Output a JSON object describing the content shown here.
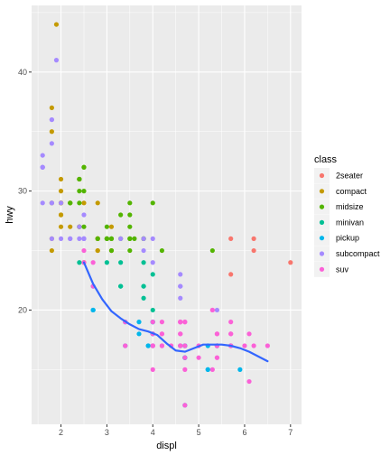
{
  "chart_data": {
    "type": "scatter",
    "xlabel": "displ",
    "ylabel": "hwy",
    "xlim": [
      1.36,
      7.24
    ],
    "ylim": [
      10.4,
      45.6
    ],
    "x_ticks": [
      2,
      3,
      4,
      5,
      6,
      7
    ],
    "y_ticks": [
      20,
      30,
      40
    ],
    "x_tick_labels": [
      "2",
      "3",
      "4",
      "5",
      "6",
      "7"
    ],
    "y_tick_labels": [
      "20",
      "30",
      "40"
    ],
    "grid": true,
    "legend": {
      "title": "class",
      "placement": "right",
      "entries": [
        {
          "label": "2seater",
          "color": "#F8766D"
        },
        {
          "label": "compact",
          "color": "#C49A00"
        },
        {
          "label": "midsize",
          "color": "#53B400"
        },
        {
          "label": "minivan",
          "color": "#00C094"
        },
        {
          "label": "pickup",
          "color": "#00B6EB"
        },
        {
          "label": "subcompact",
          "color": "#A58AFF"
        },
        {
          "label": "suv",
          "color": "#FB61D7"
        }
      ]
    },
    "series": [
      {
        "name": "2seater",
        "color": "#F8766D",
        "points": [
          [
            5.7,
            26
          ],
          [
            5.7,
            23
          ],
          [
            6.2,
            26
          ],
          [
            6.2,
            25
          ],
          [
            7.0,
            24
          ]
        ]
      },
      {
        "name": "compact",
        "color": "#C49A00",
        "points": [
          [
            1.8,
            29
          ],
          [
            1.8,
            29
          ],
          [
            2.0,
            31
          ],
          [
            2.0,
            30
          ],
          [
            2.8,
            26
          ],
          [
            2.8,
            26
          ],
          [
            3.1,
            27
          ],
          [
            1.8,
            26
          ],
          [
            1.8,
            25
          ],
          [
            2.0,
            28
          ],
          [
            2.0,
            27
          ],
          [
            2.8,
            25
          ],
          [
            2.8,
            25
          ],
          [
            3.1,
            25
          ],
          [
            3.1,
            25
          ],
          [
            2.2,
            27
          ],
          [
            2.2,
            29
          ],
          [
            2.4,
            31
          ],
          [
            2.4,
            31
          ],
          [
            3.0,
            26
          ],
          [
            2.0,
            29
          ],
          [
            2.0,
            29
          ],
          [
            2.0,
            28
          ],
          [
            2.0,
            29
          ],
          [
            2.8,
            29
          ],
          [
            1.9,
            44
          ],
          [
            2.0,
            29
          ],
          [
            2.5,
            29
          ],
          [
            2.5,
            24
          ],
          [
            2.8,
            26
          ],
          [
            2.8,
            26
          ],
          [
            1.8,
            37
          ],
          [
            1.8,
            35
          ],
          [
            2.0,
            29
          ],
          [
            2.4,
            27
          ],
          [
            2.4,
            27
          ]
        ]
      },
      {
        "name": "midsize",
        "color": "#53B400",
        "points": [
          [
            2.8,
            26
          ],
          [
            3.1,
            26
          ],
          [
            4.2,
            25
          ],
          [
            2.4,
            27
          ],
          [
            2.4,
            30
          ],
          [
            3.3,
            26
          ],
          [
            3.5,
            29
          ],
          [
            3.8,
            26
          ],
          [
            3.0,
            26
          ],
          [
            3.5,
            26
          ],
          [
            2.5,
            32
          ],
          [
            2.5,
            32
          ],
          [
            2.5,
            30
          ],
          [
            3.5,
            25
          ],
          [
            3.5,
            26
          ],
          [
            2.4,
            31
          ],
          [
            2.4,
            31
          ],
          [
            3.1,
            26
          ],
          [
            3.5,
            28
          ],
          [
            3.6,
            26
          ],
          [
            5.3,
            25
          ],
          [
            2.4,
            29
          ],
          [
            2.5,
            27
          ],
          [
            3.0,
            26
          ],
          [
            3.3,
            28
          ],
          [
            2.2,
            29
          ],
          [
            2.2,
            29
          ],
          [
            3.0,
            27
          ],
          [
            3.0,
            26
          ],
          [
            3.5,
            27
          ],
          [
            3.1,
            25
          ],
          [
            3.8,
            26
          ],
          [
            3.8,
            26
          ],
          [
            4.0,
            29
          ]
        ]
      },
      {
        "name": "minivan",
        "color": "#00C094",
        "points": [
          [
            2.4,
            24
          ],
          [
            3.0,
            24
          ],
          [
            3.3,
            22
          ],
          [
            3.3,
            22
          ],
          [
            3.3,
            24
          ],
          [
            3.8,
            22
          ],
          [
            3.8,
            24
          ],
          [
            3.8,
            21
          ],
          [
            4.0,
            23
          ],
          [
            3.8,
            22
          ],
          [
            4.0,
            20
          ]
        ]
      },
      {
        "name": "pickup",
        "color": "#00B6EB",
        "points": [
          [
            3.7,
            19
          ],
          [
            3.7,
            18
          ],
          [
            3.9,
            17
          ],
          [
            3.9,
            17
          ],
          [
            4.7,
            17
          ],
          [
            4.7,
            16
          ],
          [
            4.7,
            16
          ],
          [
            5.2,
            17
          ],
          [
            5.2,
            15
          ],
          [
            5.7,
            17
          ],
          [
            5.9,
            15
          ],
          [
            4.7,
            17
          ],
          [
            4.7,
            17
          ],
          [
            4.7,
            16
          ],
          [
            4.7,
            16
          ],
          [
            5.2,
            15
          ],
          [
            2.7,
            20
          ],
          [
            2.7,
            20
          ],
          [
            3.4,
            17
          ],
          [
            3.4,
            19
          ],
          [
            4.0,
            18
          ],
          [
            4.0,
            17
          ],
          [
            4.7,
            12
          ],
          [
            5.4,
            17
          ],
          [
            5.4,
            17
          ],
          [
            4.0,
            18
          ],
          [
            4.0,
            19
          ],
          [
            4.6,
            17
          ],
          [
            5.4,
            17
          ],
          [
            2.7,
            22
          ],
          [
            2.7,
            20
          ],
          [
            4.0,
            19
          ]
        ]
      },
      {
        "name": "subcompact",
        "color": "#A58AFF",
        "points": [
          [
            3.8,
            26
          ],
          [
            3.8,
            25
          ],
          [
            4.0,
            26
          ],
          [
            4.0,
            24
          ],
          [
            4.6,
            21
          ],
          [
            4.6,
            22
          ],
          [
            4.6,
            23
          ],
          [
            4.6,
            22
          ],
          [
            5.4,
            20
          ],
          [
            1.6,
            33
          ],
          [
            1.6,
            32
          ],
          [
            1.6,
            32
          ],
          [
            1.6,
            29
          ],
          [
            1.6,
            32
          ],
          [
            1.8,
            34
          ],
          [
            1.8,
            36
          ],
          [
            1.8,
            36
          ],
          [
            2.0,
            29
          ],
          [
            2.4,
            26
          ],
          [
            2.4,
            27
          ],
          [
            2.5,
            26
          ],
          [
            2.5,
            26
          ],
          [
            3.3,
            26
          ],
          [
            1.8,
            29
          ],
          [
            1.8,
            26
          ],
          [
            1.8,
            29
          ],
          [
            1.9,
            41
          ],
          [
            2.2,
            26
          ],
          [
            2.2,
            26
          ],
          [
            2.5,
            26
          ],
          [
            2.5,
            26
          ],
          [
            2.5,
            28
          ],
          [
            2.0,
            26
          ]
        ]
      },
      {
        "name": "suv",
        "color": "#FB61D7",
        "points": [
          [
            5.3,
            20
          ],
          [
            5.3,
            15
          ],
          [
            5.3,
            20
          ],
          [
            5.7,
            17
          ],
          [
            6.0,
            17
          ],
          [
            5.7,
            17
          ],
          [
            5.7,
            19
          ],
          [
            6.2,
            17
          ],
          [
            6.5,
            17
          ],
          [
            4.0,
            17
          ],
          [
            4.2,
            19
          ],
          [
            4.4,
            17
          ],
          [
            4.6,
            18
          ],
          [
            5.4,
            16
          ],
          [
            5.4,
            17
          ],
          [
            5.4,
            16
          ],
          [
            4.0,
            19
          ],
          [
            4.0,
            18
          ],
          [
            4.6,
            17
          ],
          [
            5.0,
            16
          ],
          [
            4.7,
            19
          ],
          [
            4.7,
            19
          ],
          [
            4.7,
            12
          ],
          [
            5.7,
            18
          ],
          [
            6.1,
            14
          ],
          [
            4.7,
            15
          ],
          [
            4.7,
            16
          ],
          [
            5.4,
            18
          ],
          [
            4.2,
            17
          ],
          [
            4.2,
            18
          ],
          [
            4.6,
            17
          ],
          [
            4.6,
            19
          ],
          [
            4.6,
            18
          ],
          [
            5.4,
            17
          ],
          [
            2.5,
            24
          ],
          [
            2.5,
            25
          ],
          [
            2.7,
            24
          ],
          [
            2.7,
            22
          ],
          [
            3.4,
            17
          ],
          [
            3.4,
            19
          ],
          [
            4.0,
            15
          ],
          [
            4.7,
            17
          ],
          [
            5.7,
            18
          ],
          [
            4.0,
            17
          ],
          [
            4.0,
            17
          ],
          [
            4.6,
            19
          ],
          [
            5.0,
            17
          ],
          [
            4.2,
            17
          ],
          [
            4.2,
            18
          ],
          [
            4.6,
            19
          ],
          [
            4.6,
            19
          ],
          [
            5.4,
            18
          ],
          [
            5.4,
            17
          ],
          [
            6.1,
            18
          ]
        ]
      }
    ],
    "smooth_line": {
      "color": "#3366FF",
      "x": [
        2.5,
        2.7,
        2.9,
        3.1,
        3.3,
        3.5,
        3.7,
        3.9,
        4.1,
        4.3,
        4.5,
        4.7,
        4.9,
        5.1,
        5.3,
        5.5,
        5.7,
        5.9,
        6.1,
        6.3,
        6.5
      ],
      "y": [
        24.0,
        22.2,
        20.9,
        19.9,
        19.3,
        18.8,
        18.4,
        18.2,
        17.9,
        17.2,
        16.6,
        16.5,
        16.8,
        17.1,
        17.1,
        17.1,
        17.0,
        16.8,
        16.5,
        16.1,
        15.7
      ]
    }
  }
}
